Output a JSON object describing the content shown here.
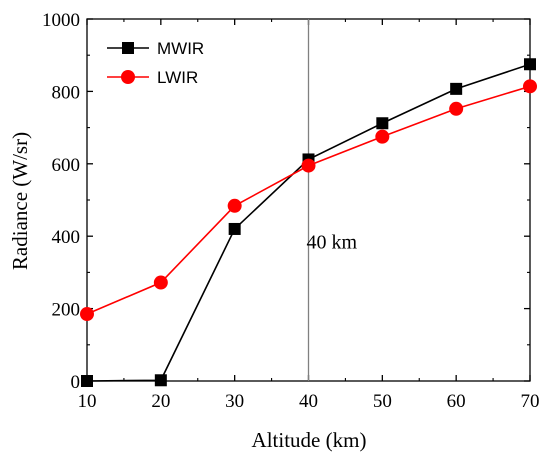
{
  "chart_data": {
    "type": "line",
    "title": "",
    "xlabel": "Altitude (km)",
    "ylabel": "Radiance (W/sr)",
    "xlim": [
      10,
      70
    ],
    "ylim": [
      0,
      1000
    ],
    "x_ticks": [
      "10",
      "20",
      "30",
      "40",
      "50",
      "60",
      "70"
    ],
    "y_ticks": [
      "0",
      "200",
      "400",
      "600",
      "800",
      "1000"
    ],
    "x": [
      10,
      20,
      30,
      40,
      50,
      60,
      70
    ],
    "series": [
      {
        "name": "MWIR",
        "values": [
          0,
          2,
          420,
          612,
          712,
          807,
          875
        ],
        "color": "#000000",
        "marker": "square"
      },
      {
        "name": "LWIR",
        "values": [
          185,
          272,
          484,
          595,
          675,
          752,
          814
        ],
        "color": "#ff0000",
        "marker": "circle"
      }
    ],
    "annotations": [
      {
        "type": "vertical-line",
        "x": 40,
        "label": "40 km",
        "label_y": 385
      }
    ],
    "legend_position": "top-left",
    "grid": false
  }
}
